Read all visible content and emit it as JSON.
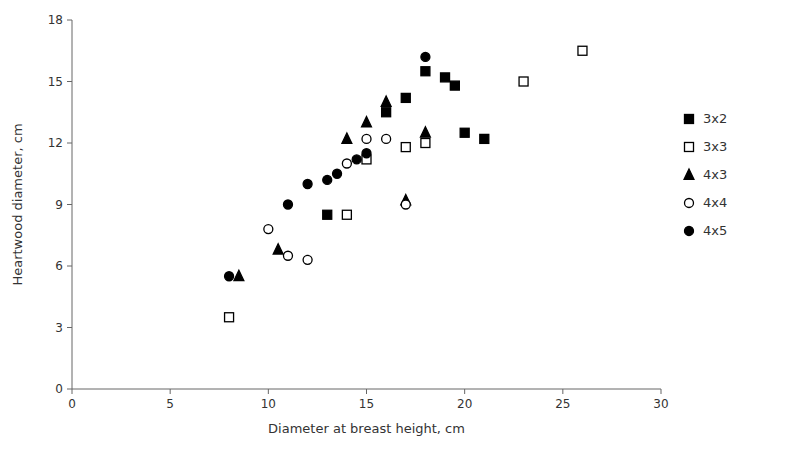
{
  "chart_data": {
    "type": "scatter",
    "xlabel": "Diameter at breast height, cm",
    "ylabel": "Heartwood diameter, cm",
    "xlim": [
      0,
      30
    ],
    "ylim": [
      0,
      18
    ],
    "xticks": [
      0,
      5,
      10,
      15,
      20,
      25,
      30
    ],
    "yticks": [
      0,
      3,
      6,
      9,
      12,
      15,
      18
    ],
    "grid": false,
    "legend": "right",
    "series": [
      {
        "name": "3x2",
        "color": "black",
        "marker": "square",
        "x": [
          13,
          16,
          17,
          18,
          19,
          19.5,
          20,
          21
        ],
        "values": [
          8.5,
          13.5,
          14.2,
          15.5,
          15.2,
          14.8,
          12.5,
          12.2
        ]
      },
      {
        "name": "3x3",
        "color": "black",
        "marker": "square-open",
        "x": [
          8,
          14,
          15,
          17,
          18,
          23,
          26
        ],
        "values": [
          3.5,
          8.5,
          11.2,
          11.8,
          12.0,
          15.0,
          16.5
        ]
      },
      {
        "name": "4x3",
        "color": "black",
        "marker": "triangle",
        "x": [
          8.5,
          10.5,
          14,
          15,
          16,
          17,
          18
        ],
        "values": [
          5.5,
          6.8,
          12.2,
          13.0,
          14.0,
          9.2,
          12.5
        ]
      },
      {
        "name": "4x4",
        "color": "black",
        "marker": "circle-open",
        "x": [
          10,
          11,
          12,
          14,
          15,
          16,
          17
        ],
        "values": [
          7.8,
          6.5,
          6.3,
          11.0,
          12.2,
          12.2,
          9.0
        ]
      },
      {
        "name": "4x5",
        "color": "black",
        "marker": "circle",
        "x": [
          8,
          11,
          12,
          13,
          13.5,
          14.5,
          15,
          18
        ],
        "values": [
          5.5,
          9.0,
          10.0,
          10.2,
          10.5,
          11.2,
          11.5,
          16.2
        ]
      }
    ]
  }
}
